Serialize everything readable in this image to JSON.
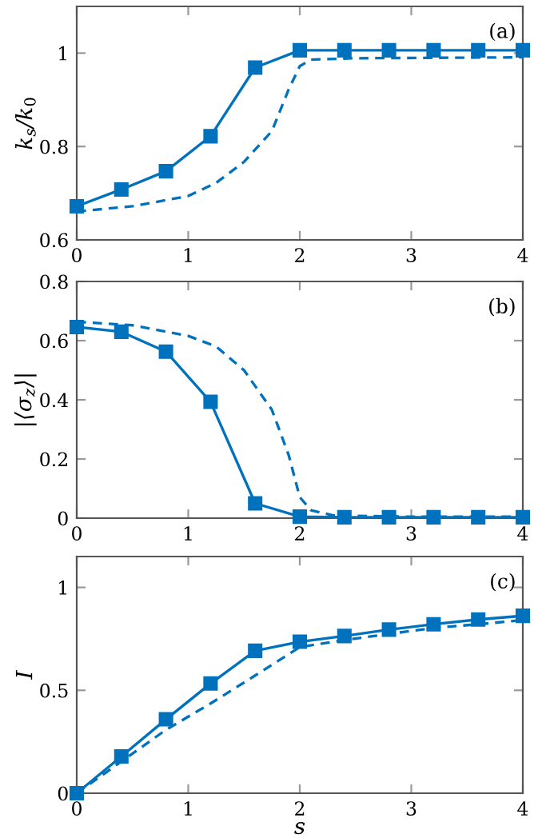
{
  "chart_data": [
    {
      "type": "line",
      "ylabel": "k$_{s}$/k$_{0}$",
      "annotations": [
        "(a)"
      ],
      "xlim": [
        0,
        4
      ],
      "ylim": [
        0.6,
        1.1
      ],
      "xticks": [
        0,
        1,
        2,
        3,
        4
      ],
      "yticks": [
        0.6,
        0.8,
        1
      ],
      "grid": false,
      "series": [
        {
          "color": "#0072bd",
          "marker": "square",
          "line_style": "solid",
          "x": [
            0,
            0.4,
            0.8,
            1.2,
            1.6,
            2,
            2.4,
            2.8,
            3.2,
            3.6,
            4
          ],
          "values": [
            0.672,
            0.708,
            0.747,
            0.822,
            0.969,
            1.006,
            1.006,
            1.006,
            1.006,
            1.006,
            1.006
          ]
        },
        {
          "color": "#0072bd",
          "marker": "none",
          "line_style": "dashed",
          "x": [
            0,
            0.5,
            1,
            1.25,
            1.5,
            1.75,
            1.9,
            2,
            2.1,
            2.5,
            4
          ],
          "values": [
            0.661,
            0.672,
            0.694,
            0.722,
            0.767,
            0.833,
            0.922,
            0.972,
            0.986,
            0.989,
            0.991
          ]
        }
      ]
    },
    {
      "type": "line",
      "ylabel": "|⟨σ$_{z}$⟩|",
      "annotations": [
        "(b)"
      ],
      "xlim": [
        0,
        4
      ],
      "ylim": [
        0,
        0.8
      ],
      "xticks": [
        0,
        1,
        2,
        3,
        4
      ],
      "yticks": [
        0,
        0.2,
        0.4,
        0.6,
        0.8
      ],
      "grid": false,
      "series": [
        {
          "color": "#0072bd",
          "marker": "square",
          "line_style": "solid",
          "x": [
            0,
            0.4,
            0.8,
            1.2,
            1.6,
            2,
            2.4,
            2.8,
            3.2,
            3.6,
            4
          ],
          "values": [
            0.646,
            0.63,
            0.563,
            0.393,
            0.05,
            0.005,
            0.003,
            0.003,
            0.003,
            0.003,
            0.003
          ]
        },
        {
          "color": "#0072bd",
          "marker": "none",
          "line_style": "dashed",
          "x": [
            0,
            0.5,
            1,
            1.25,
            1.5,
            1.75,
            1.9,
            2,
            2.1,
            2.3,
            3,
            4
          ],
          "values": [
            0.664,
            0.652,
            0.616,
            0.58,
            0.5,
            0.366,
            0.214,
            0.071,
            0.027,
            0.009,
            0.005,
            0.005
          ]
        }
      ]
    },
    {
      "type": "line",
      "xlabel": "s",
      "ylabel": "I",
      "annotations": [
        "(c)"
      ],
      "xlim": [
        0,
        4
      ],
      "ylim": [
        0,
        1.15
      ],
      "xticks": [
        0,
        1,
        2,
        3,
        4
      ],
      "yticks": [
        0,
        0.5,
        1
      ],
      "grid": false,
      "series": [
        {
          "color": "#0072bd",
          "marker": "square",
          "line_style": "solid",
          "x": [
            0,
            0.4,
            0.8,
            1.2,
            1.6,
            2,
            2.4,
            2.8,
            3.2,
            3.6,
            4
          ],
          "values": [
            0,
            0.179,
            0.359,
            0.533,
            0.692,
            0.736,
            0.764,
            0.795,
            0.821,
            0.844,
            0.862
          ]
        },
        {
          "color": "#0072bd",
          "marker": "none",
          "line_style": "dashed",
          "x": [
            0,
            0.4,
            0.8,
            1.2,
            1.6,
            2,
            2.4,
            2.8,
            3.2,
            3.6,
            4
          ],
          "values": [
            0,
            0.154,
            0.308,
            0.436,
            0.572,
            0.71,
            0.744,
            0.774,
            0.803,
            0.821,
            0.841
          ]
        }
      ]
    }
  ]
}
